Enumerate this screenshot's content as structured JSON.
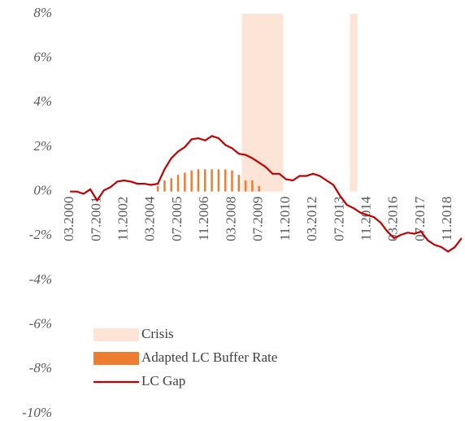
{
  "chart_data": {
    "type": "combo",
    "categories": [
      "03.2000",
      null,
      null,
      null,
      "07.2001",
      null,
      null,
      null,
      "11.2002",
      null,
      null,
      null,
      "03.2004",
      null,
      null,
      null,
      "07.2005",
      null,
      null,
      null,
      "11.2006",
      null,
      null,
      null,
      "03.2008",
      null,
      null,
      null,
      "07.2009",
      null,
      null,
      null,
      "11.2010",
      null,
      null,
      null,
      "03.2012",
      null,
      null,
      null,
      "07.2013",
      null,
      null,
      null,
      "11.2014",
      null,
      null,
      null,
      "03.2016",
      null,
      null,
      null,
      "07.2017",
      null,
      null,
      null,
      "11.2018",
      null,
      null
    ],
    "series": [
      {
        "name": "Crisis",
        "type": "span",
        "color": "#fce4d6",
        "values": [
          null,
          null,
          null,
          null,
          null,
          null,
          null,
          null,
          null,
          null,
          null,
          null,
          null,
          null,
          null,
          null,
          null,
          null,
          null,
          null,
          null,
          null,
          null,
          null,
          null,
          null,
          8,
          8,
          8,
          8,
          8,
          8,
          null,
          null,
          null,
          null,
          null,
          null,
          null,
          null,
          null,
          null,
          8,
          null,
          null,
          null,
          null,
          null,
          null,
          null,
          null,
          null,
          null,
          null,
          null,
          null,
          null,
          null,
          null
        ]
      },
      {
        "name": "Adapted LC Buffer Rate",
        "type": "bar",
        "color": "#ed7d31",
        "values": [
          null,
          null,
          null,
          null,
          null,
          null,
          null,
          null,
          null,
          null,
          null,
          null,
          null,
          0.25,
          0.5,
          0.6,
          0.75,
          0.85,
          0.95,
          1,
          1,
          1,
          1,
          1,
          0.95,
          0.75,
          0.5,
          0.5,
          0.25,
          null,
          null,
          null,
          null,
          null,
          null,
          null,
          null,
          null,
          null,
          null,
          null,
          null,
          null,
          null,
          null,
          null,
          null,
          null,
          null,
          null,
          null,
          null,
          null,
          null,
          null,
          null,
          null,
          null,
          null
        ]
      },
      {
        "name": "LC Gap",
        "type": "line",
        "color": "#c00000",
        "values": [
          0,
          0,
          -0.1,
          0.1,
          -0.4,
          0.05,
          0.2,
          0.45,
          0.5,
          0.45,
          0.35,
          0.35,
          0.3,
          0.35,
          1.0,
          1.5,
          1.8,
          2.0,
          2.35,
          2.4,
          2.3,
          2.5,
          2.4,
          2.1,
          1.95,
          1.7,
          1.65,
          1.5,
          1.3,
          1.1,
          0.8,
          0.8,
          0.55,
          0.5,
          0.7,
          0.7,
          0.8,
          0.7,
          0.5,
          0.3,
          -0.2,
          -0.6,
          -0.75,
          -0.95,
          -1.05,
          -1.15,
          -1.4,
          -1.8,
          -2.1,
          -1.95,
          -1.85,
          -1.9,
          -1.8,
          -2.2,
          -2.4,
          -2.5,
          -2.7,
          -2.5,
          -2.1
        ]
      }
    ],
    "ylim": [
      -10,
      8
    ],
    "yticks": [
      {
        "value": -10,
        "label": "-10%"
      },
      {
        "value": -8,
        "label": "-8%"
      },
      {
        "value": -6,
        "label": "-6%"
      },
      {
        "value": -4,
        "label": "-4%"
      },
      {
        "value": -2,
        "label": "-2%"
      },
      {
        "value": 0,
        "label": "0%"
      },
      {
        "value": 2,
        "label": "2%"
      },
      {
        "value": 4,
        "label": "4%"
      },
      {
        "value": 6,
        "label": "6%"
      },
      {
        "value": 8,
        "label": "8%"
      }
    ],
    "grid": false,
    "legend": "lower left"
  }
}
